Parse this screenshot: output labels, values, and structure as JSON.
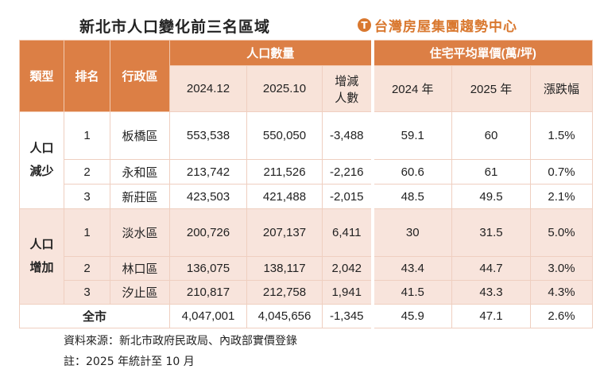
{
  "title": "新北市人口變化前三名區域",
  "logo": {
    "text": "台灣房屋集團趨勢中心",
    "color": "#d9782f"
  },
  "colors": {
    "header": "#dc7f45",
    "subheader": "#f8e3d9",
    "increase_rows": "#f8e4dc"
  },
  "table": {
    "headers": {
      "type": "類型",
      "rank": "排名",
      "district": "行政區",
      "population_group": "人口數量",
      "price_group": "住宅平均單價(萬/坪)",
      "pop_2024": "2024.12",
      "pop_2025": "2025.10",
      "pop_change_line1": "增減",
      "pop_change_line2": "人數",
      "price_2024": "2024 年",
      "price_2025": "2025 年",
      "price_change": "漲跌幅"
    },
    "groups": [
      {
        "type_line1": "人口",
        "type_line2": "減少",
        "rows": [
          {
            "rank": "1",
            "district": "板橋區",
            "pop_2024": "553,538",
            "pop_2025": "550,050",
            "change": "-3,488",
            "price_2024": "59.1",
            "price_2025": "60",
            "price_change": "1.5%"
          },
          {
            "rank": "2",
            "district": "永和區",
            "pop_2024": "213,742",
            "pop_2025": "211,526",
            "change": "-2,216",
            "price_2024": "60.6",
            "price_2025": "61",
            "price_change": "0.7%"
          },
          {
            "rank": "3",
            "district": "新莊區",
            "pop_2024": "423,503",
            "pop_2025": "421,488",
            "change": "-2,015",
            "price_2024": "48.5",
            "price_2025": "49.5",
            "price_change": "2.1%"
          }
        ]
      },
      {
        "type_line1": "人口",
        "type_line2": "增加",
        "rows": [
          {
            "rank": "1",
            "district": "淡水區",
            "pop_2024": "200,726",
            "pop_2025": "207,137",
            "change": "6,411",
            "price_2024": "30",
            "price_2025": "31.5",
            "price_change": "5.0%"
          },
          {
            "rank": "2",
            "district": "林口區",
            "pop_2024": "136,075",
            "pop_2025": "138,117",
            "change": "2,042",
            "price_2024": "43.4",
            "price_2025": "44.7",
            "price_change": "3.0%"
          },
          {
            "rank": "3",
            "district": "汐止區",
            "pop_2024": "210,817",
            "pop_2025": "212,758",
            "change": "1,941",
            "price_2024": "41.5",
            "price_2025": "43.3",
            "price_change": "4.3%"
          }
        ]
      }
    ],
    "total": {
      "label": "全市",
      "pop_2024": "4,047,001",
      "pop_2025": "4,045,656",
      "change": "-1,345",
      "price_2024": "45.9",
      "price_2025": "47.1",
      "price_change": "2.6%"
    }
  },
  "notes": {
    "source": "資料來源：新北市政府民政局、內政部實價登錄",
    "remark": "註：2025 年統計至 10 月"
  }
}
